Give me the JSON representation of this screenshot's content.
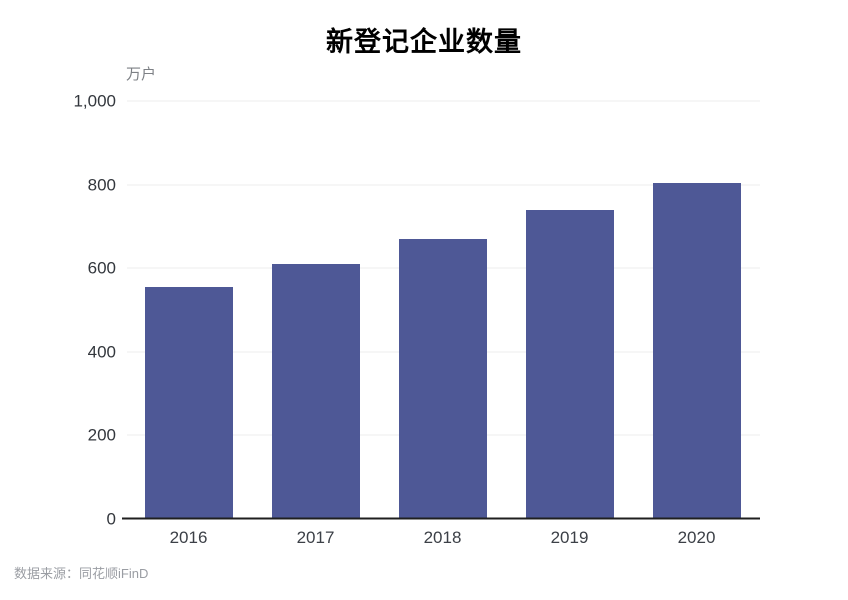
{
  "chart_data": {
    "type": "bar",
    "title": "新登记企业数量",
    "unit_label": "万户",
    "xlabel": "",
    "ylabel": "万户",
    "categories": [
      "2016",
      "2017",
      "2018",
      "2019",
      "2020"
    ],
    "values": [
      555,
      610,
      670,
      740,
      805
    ],
    "ylim": [
      0,
      1000
    ],
    "yticks": [
      {
        "value": 0,
        "label": "0"
      },
      {
        "value": 200,
        "label": "200"
      },
      {
        "value": 400,
        "label": "400"
      },
      {
        "value": 600,
        "label": "600"
      },
      {
        "value": 800,
        "label": "800"
      },
      {
        "value": 1000,
        "label": "1,000"
      }
    ],
    "grid": true,
    "legend": false,
    "colors": {
      "bar": "#4e5896",
      "gridline": "#ececec",
      "axis_line": "#1f1f1f",
      "title_text": "#000000",
      "tick_text": "#33373d",
      "unit_text": "#7d8085"
    }
  },
  "footer": {
    "source": "数据来源：同花顺iFinD"
  }
}
